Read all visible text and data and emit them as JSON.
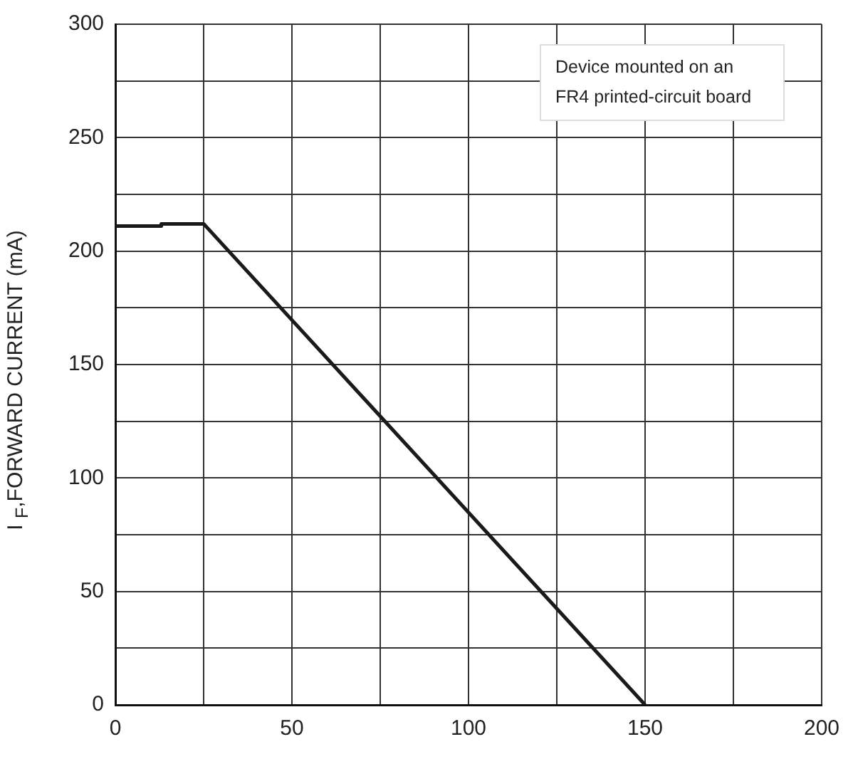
{
  "chart_data": {
    "type": "line",
    "ylabel": "I $_{F}$,FORWARD  CURRENT (mA)",
    "annotations": [
      "Device mounted on an FR4 printed-circuit board"
    ],
    "series": [
      {
        "color": "#1a1a1a",
        "x": [
          0,
          13,
          13,
          25,
          150
        ],
        "values": [
          211,
          211,
          212,
          212,
          0
        ]
      }
    ],
    "xlim": [
      0,
      200
    ],
    "xticks": [
      0,
      {
        "value": 25,
        "label": null
      },
      50,
      {
        "value": 75,
        "label": null
      },
      100,
      {
        "value": 125,
        "label": null
      },
      150,
      {
        "value": 175,
        "label": null
      },
      200
    ],
    "ylim": [
      0,
      300
    ],
    "yticks": [
      0,
      {
        "value": 25,
        "label": null
      },
      50,
      {
        "value": 75,
        "label": null
      },
      100,
      {
        "value": 125,
        "label": null
      },
      150,
      {
        "value": 175,
        "label": null
      },
      200,
      {
        "value": 225,
        "label": null
      },
      250,
      {
        "value": 275,
        "label": null
      },
      300
    ],
    "grid": true,
    "legend": false,
    "marker": "none",
    "line_style": "solid"
  }
}
